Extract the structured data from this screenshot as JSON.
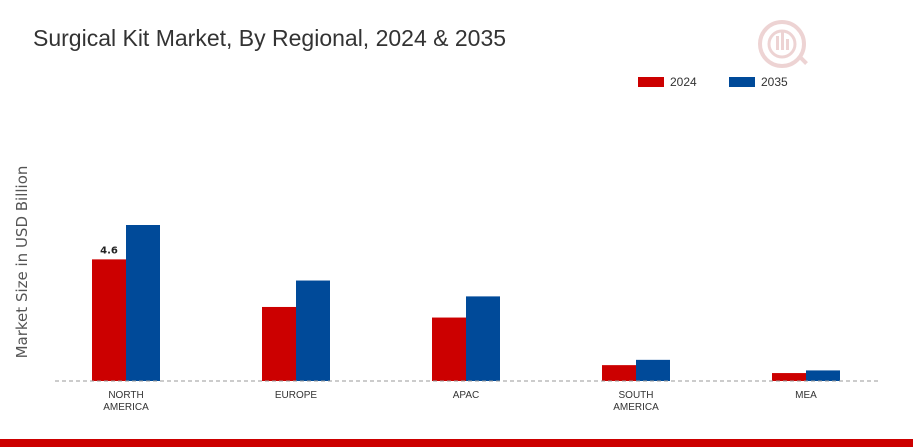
{
  "chart_data": {
    "type": "bar",
    "title": "Surgical Kit Market, By Regional, 2024 & 2035",
    "ylabel": "Market Size in USD Billion",
    "xlabel": "",
    "categories": [
      "NORTH AMERICA",
      "EUROPE",
      "APAC",
      "SOUTH AMERICA",
      "MEA"
    ],
    "category_lines": [
      [
        "NORTH",
        "AMERICA"
      ],
      [
        "EUROPE"
      ],
      [
        "APAC"
      ],
      [
        "SOUTH",
        "AMERICA"
      ],
      [
        "MEA"
      ]
    ],
    "series": [
      {
        "name": "2024",
        "color": "#cc0000",
        "values": [
          4.6,
          2.8,
          2.4,
          0.6,
          0.3
        ]
      },
      {
        "name": "2035",
        "color": "#004a99",
        "values": [
          5.9,
          3.8,
          3.2,
          0.8,
          0.4
        ]
      }
    ],
    "data_labels": [
      {
        "series": 0,
        "index": 0,
        "text": "4.6"
      }
    ],
    "ylim": [
      0,
      8
    ],
    "grid": false,
    "legend_position": "top-right",
    "baseline": "dashed"
  },
  "colors": {
    "accent_bar": "#cc0000",
    "logo": "#d9a0a0"
  },
  "icons": [
    "logo-watermark-icon"
  ]
}
